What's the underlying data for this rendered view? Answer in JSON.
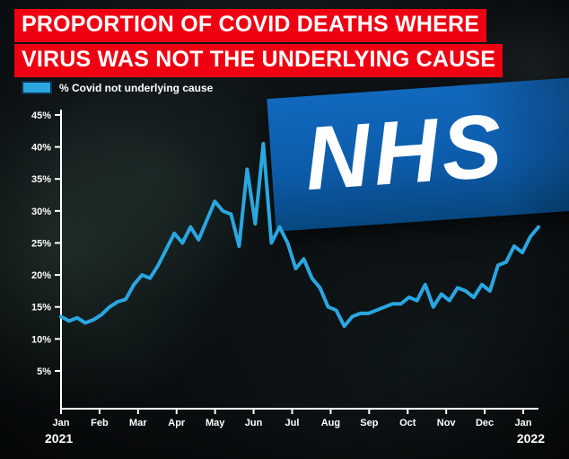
{
  "title": {
    "line1": "PROPORTION OF COVID DEATHS WHERE",
    "line2": "VIRUS WAS NOT THE UNDERLYING CAUSE"
  },
  "legend": {
    "label": "% Covid not underlying cause"
  },
  "background": {
    "nhs_logo_text": "NHS"
  },
  "colors": {
    "line": "#2aa6e0",
    "title_bg": "#ee0012",
    "nhs_blue": "#0d5cab",
    "axis": "#ffffff"
  },
  "chart_data": {
    "type": "line",
    "title": "Proportion of Covid deaths where virus was not the underlying cause",
    "legend_position": "top-left",
    "grid": false,
    "ylabel": "",
    "xlabel": "",
    "ylim": [
      0,
      47
    ],
    "y_tick_values": [
      45,
      40,
      35,
      30,
      25,
      20,
      15,
      10,
      5
    ],
    "y_tick_labels": [
      "45%",
      "40%",
      "35%",
      "30%",
      "25%",
      "20%",
      "15%",
      "10%",
      "5%"
    ],
    "x_tick_labels": [
      "Jan",
      "Feb",
      "Mar",
      "Apr",
      "May",
      "Jun",
      "Jul",
      "Aug",
      "Sep",
      "Oct",
      "Nov",
      "Dec",
      "Jan"
    ],
    "year_start": "2021",
    "year_end": "2022",
    "series": [
      {
        "name": "% Covid not underlying cause",
        "unit": "percent",
        "cadence": "weekly",
        "values": [
          13.5,
          12.8,
          13.3,
          12.5,
          13.0,
          13.8,
          15.0,
          15.8,
          16.2,
          18.5,
          20.0,
          19.5,
          21.5,
          24.0,
          26.5,
          25.0,
          27.5,
          25.5,
          28.5,
          31.5,
          30.0,
          29.5,
          24.5,
          36.5,
          28.0,
          40.5,
          25.0,
          27.5,
          25.0,
          21.0,
          22.5,
          19.5,
          18.0,
          15.0,
          14.5,
          12.0,
          13.5,
          14.0,
          14.0,
          14.5,
          15.0,
          15.5,
          15.5,
          16.5,
          16.0,
          18.5,
          15.0,
          17.0,
          16.0,
          18.0,
          17.5,
          16.5,
          18.5,
          17.5,
          21.5,
          22.0,
          24.5,
          23.5,
          26.0,
          27.5
        ]
      }
    ]
  }
}
